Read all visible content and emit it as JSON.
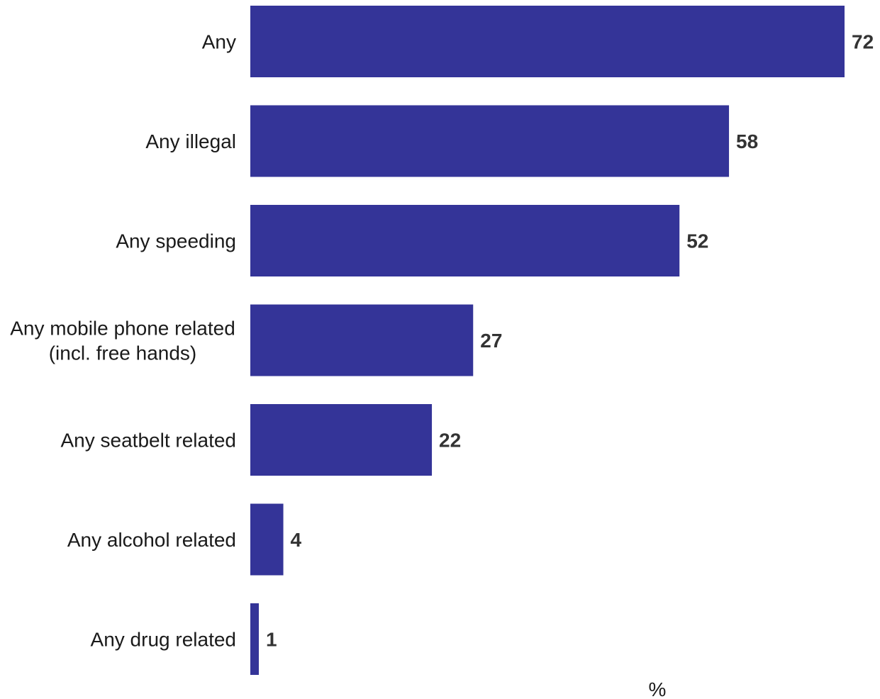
{
  "chart_data": {
    "type": "bar",
    "orientation": "horizontal",
    "categories": [
      "Any",
      "Any illegal",
      "Any speeding",
      "Any mobile phone related\n(incl. free hands)",
      "Any seatbelt related",
      "Any alcohol related",
      "Any drug related"
    ],
    "values": [
      72,
      58,
      52,
      27,
      22,
      4,
      1
    ],
    "xlabel": "%",
    "xlim": [
      0,
      72
    ],
    "grid": false,
    "bar_color": "#343498"
  }
}
